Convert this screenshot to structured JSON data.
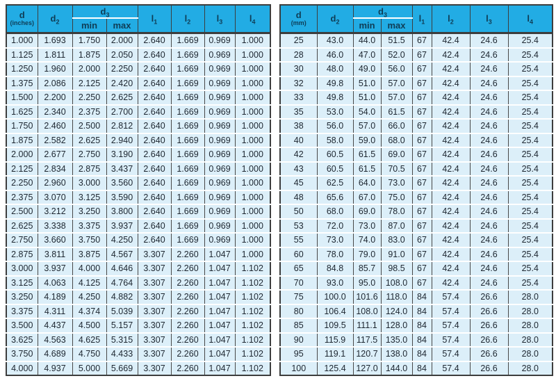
{
  "colors": {
    "header_bg": "#22ACE4",
    "header_text": "#0F3D56",
    "row_bg": "#DCEFF9",
    "row_separator": "#FFFFFF",
    "grid_line": "#3D3D3D",
    "body_text": "#1D2630",
    "page_bg": "#FFFFFF"
  },
  "tables": [
    {
      "id": "inches",
      "head": {
        "d_base": "d",
        "d_unit": "(inches)",
        "d2_base": "d",
        "d2_sub": "2",
        "d3_base": "d",
        "d3_sub": "3",
        "min_label": "min",
        "max_label": "max",
        "l1_base": "l",
        "l1_sub": "1",
        "l2_base": "l",
        "l2_sub": "2",
        "l3_base": "l",
        "l3_sub": "3",
        "l4_base": "l",
        "l4_sub": "4"
      },
      "rows": [
        [
          "1.000",
          "1.693",
          "1.750",
          "2.000",
          "2.640",
          "1.669",
          "0.969",
          "1.000"
        ],
        [
          "1.125",
          "1.811",
          "1.875",
          "2.050",
          "2.640",
          "1.669",
          "0.969",
          "1.000"
        ],
        [
          "1.250",
          "1.960",
          "2.000",
          "2.250",
          "2.640",
          "1.669",
          "0.969",
          "1.000"
        ],
        [
          "1.375",
          "2.086",
          "2.125",
          "2.420",
          "2.640",
          "1.669",
          "0.969",
          "1.000"
        ],
        [
          "1.500",
          "2.200",
          "2.250",
          "2.625",
          "2.640",
          "1.669",
          "0.969",
          "1.000"
        ],
        [
          "1.625",
          "2.340",
          "2.375",
          "2.700",
          "2.640",
          "1.669",
          "0.969",
          "1.000"
        ],
        [
          "1.750",
          "2.460",
          "2.500",
          "2.812",
          "2.640",
          "1.669",
          "0.969",
          "1.000"
        ],
        [
          "1.875",
          "2.582",
          "2.625",
          "2.940",
          "2.640",
          "1.669",
          "0.969",
          "1.000"
        ],
        [
          "2.000",
          "2.677",
          "2.750",
          "3.190",
          "2.640",
          "1.669",
          "0.969",
          "1.000"
        ],
        [
          "2.125",
          "2.834",
          "2.875",
          "3.437",
          "2.640",
          "1.669",
          "0.969",
          "1.000"
        ],
        [
          "2.250",
          "2.960",
          "3.000",
          "3.560",
          "2.640",
          "1.669",
          "0.969",
          "1.000"
        ],
        [
          "2.375",
          "3.070",
          "3.125",
          "3.590",
          "2.640",
          "1.669",
          "0.969",
          "1.000"
        ],
        [
          "2.500",
          "3.212",
          "3.250",
          "3.800",
          "2.640",
          "1.669",
          "0.969",
          "1.000"
        ],
        [
          "2.625",
          "3.338",
          "3.375",
          "3.937",
          "2.640",
          "1.669",
          "0.969",
          "1.000"
        ],
        [
          "2.750",
          "3.660",
          "3.750",
          "4.250",
          "2.640",
          "1.669",
          "0.969",
          "1.000"
        ],
        [
          "2.875",
          "3.811",
          "3.875",
          "4.567",
          "3.307",
          "2.260",
          "1.047",
          "1.000"
        ],
        [
          "3.000",
          "3.937",
          "4.000",
          "4.646",
          "3.307",
          "2.260",
          "1.047",
          "1.102"
        ],
        [
          "3.125",
          "4.063",
          "4.125",
          "4.764",
          "3.307",
          "2.260",
          "1.047",
          "1.102"
        ],
        [
          "3.250",
          "4.189",
          "4.250",
          "4.882",
          "3.307",
          "2.260",
          "1.047",
          "1.102"
        ],
        [
          "3.375",
          "4.311",
          "4.374",
          "5.039",
          "3.307",
          "2.260",
          "1.047",
          "1.102"
        ],
        [
          "3.500",
          "4.437",
          "4.500",
          "5.157",
          "3.307",
          "2.260",
          "1.047",
          "1.102"
        ],
        [
          "3.625",
          "4.563",
          "4.625",
          "5.315",
          "3.307",
          "2.260",
          "1.047",
          "1.102"
        ],
        [
          "3.750",
          "4.689",
          "4.750",
          "4.433",
          "3.307",
          "2.260",
          "1.047",
          "1.102"
        ],
        [
          "4.000",
          "4.937",
          "5.000",
          "5.669",
          "3.307",
          "2.260",
          "1.047",
          "1.102"
        ]
      ]
    },
    {
      "id": "mm",
      "head": {
        "d_base": "d",
        "d_unit": "(mm)",
        "d2_base": "d",
        "d2_sub": "2",
        "d3_base": "d",
        "d3_sub": "3",
        "min_label": "min",
        "max_label": "max",
        "l1_base": "l",
        "l1_sub": "1",
        "l2_base": "l",
        "l2_sub": "2",
        "l3_base": "l",
        "l3_sub": "3",
        "l4_base": "l",
        "l4_sub": "4"
      },
      "rows": [
        [
          "25",
          "43.0",
          "44.0",
          "51.5",
          "67",
          "42.4",
          "24.6",
          "25.4"
        ],
        [
          "28",
          "46.0",
          "47.0",
          "52.0",
          "67",
          "42.4",
          "24.6",
          "25.4"
        ],
        [
          "30",
          "48.0",
          "49.0",
          "56.0",
          "67",
          "42.4",
          "24.6",
          "25.4"
        ],
        [
          "32",
          "49.8",
          "51.0",
          "57.0",
          "67",
          "42.4",
          "24.6",
          "25.4"
        ],
        [
          "33",
          "49.8",
          "51.0",
          "57.0",
          "67",
          "42.4",
          "24.6",
          "25.4"
        ],
        [
          "35",
          "53.0",
          "54.0",
          "61.5",
          "67",
          "42.4",
          "24.6",
          "25.4"
        ],
        [
          "38",
          "56.0",
          "57.0",
          "66.0",
          "67",
          "42.4",
          "24.6",
          "25.4"
        ],
        [
          "40",
          "58.0",
          "59.0",
          "68.0",
          "67",
          "42.4",
          "24.6",
          "25.4"
        ],
        [
          "42",
          "60.5",
          "61.5",
          "69.0",
          "67",
          "42.4",
          "24.6",
          "25.4"
        ],
        [
          "43",
          "60.5",
          "61.5",
          "70.5",
          "67",
          "42.4",
          "24.6",
          "25.4"
        ],
        [
          "45",
          "62.5",
          "64.0",
          "73.0",
          "67",
          "42.4",
          "24.6",
          "25.4"
        ],
        [
          "48",
          "65.6",
          "67.0",
          "75.0",
          "67",
          "42.4",
          "24.6",
          "25.4"
        ],
        [
          "50",
          "68.0",
          "69.0",
          "78.0",
          "67",
          "42.4",
          "24.6",
          "25.4"
        ],
        [
          "53",
          "72.0",
          "73.0",
          "87.0",
          "67",
          "42.4",
          "24.6",
          "25.4"
        ],
        [
          "55",
          "73.0",
          "74.0",
          "83.0",
          "67",
          "42.4",
          "24.6",
          "25.4"
        ],
        [
          "60",
          "78.0",
          "79.0",
          "91.0",
          "67",
          "42.4",
          "24.6",
          "25.4"
        ],
        [
          "65",
          "84.8",
          "85.7",
          "98.5",
          "67",
          "42.4",
          "24.6",
          "25.4"
        ],
        [
          "70",
          "93.0",
          "95.0",
          "108.0",
          "67",
          "42.4",
          "24.6",
          "25.4"
        ],
        [
          "75",
          "100.0",
          "101.6",
          "118.0",
          "84",
          "57.4",
          "26.6",
          "28.0"
        ],
        [
          "80",
          "106.4",
          "108.0",
          "124.0",
          "84",
          "57.4",
          "26.6",
          "28.0"
        ],
        [
          "85",
          "109.5",
          "111.1",
          "128.0",
          "84",
          "57.4",
          "26.6",
          "28.0"
        ],
        [
          "90",
          "115.9",
          "117.5",
          "135.0",
          "84",
          "57.4",
          "26.6",
          "28.0"
        ],
        [
          "95",
          "119.1",
          "120.7",
          "138.0",
          "84",
          "57.4",
          "26.6",
          "28.0"
        ],
        [
          "100",
          "125.4",
          "127.0",
          "144.0",
          "84",
          "57.4",
          "26.6",
          "28.0"
        ]
      ]
    }
  ]
}
